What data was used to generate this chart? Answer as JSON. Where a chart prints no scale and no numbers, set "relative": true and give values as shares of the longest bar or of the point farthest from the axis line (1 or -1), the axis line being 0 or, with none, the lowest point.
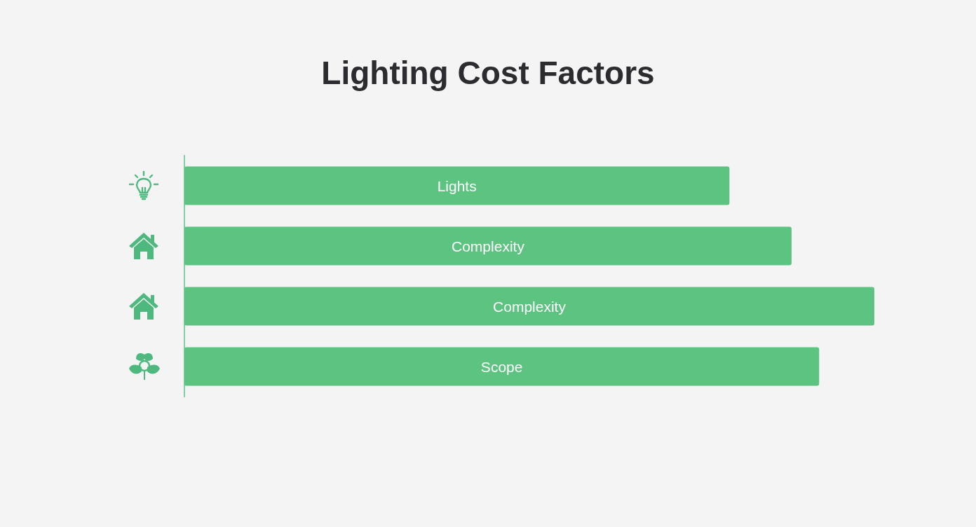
{
  "chart_data": {
    "type": "bar",
    "orientation": "horizontal",
    "title": "Lighting Cost Factors",
    "categories": [
      "Lights",
      "Complexity",
      "Complexity",
      "Scope"
    ],
    "values": [
      0.79,
      0.88,
      1,
      0.92
    ],
    "relative": true,
    "color": "#5cc480"
  }
}
